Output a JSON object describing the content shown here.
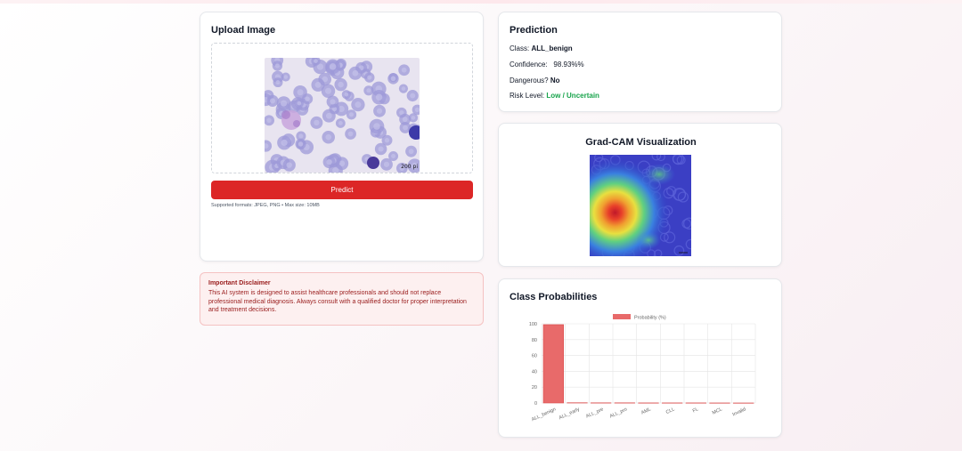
{
  "upload": {
    "title": "Upload Image",
    "scale_label": "200 pi",
    "predict_label": "Predict",
    "formats_text": "Supported formats: JPEG, PNG • Max size: 10MB"
  },
  "disclaimer": {
    "title": "Important Disclaimer",
    "text": "This AI system is designed to assist healthcare professionals and should not replace professional medical diagnosis. Always consult with a qualified doctor for proper interpretation and treatment decisions."
  },
  "prediction": {
    "title": "Prediction",
    "class_label": "Class:",
    "class_value": "ALL_benign",
    "confidence_label": "Confidence:",
    "confidence_value": "98.93%%",
    "dangerous_label": "Dangerous?",
    "dangerous_value": "No",
    "risk_label": "Risk Level:",
    "risk_value": "Low / Uncertain"
  },
  "gradcam": {
    "title": "Grad-CAM Visualization",
    "scale_label": "200"
  },
  "probabilities": {
    "title": "Class Probabilities"
  },
  "colors": {
    "accent": "#dc2626",
    "bar": "#e86a6a",
    "risk_low": "#16a34a",
    "disclaimer_text": "#991b1b"
  },
  "chart_data": {
    "type": "bar",
    "categories": [
      "ALL_benign",
      "ALL_early",
      "ALL_pre",
      "ALL_pro",
      "AML",
      "CLL",
      "FL",
      "MCL",
      "Invalid"
    ],
    "series": [
      {
        "name": "Probability (%)",
        "values": [
          98.93,
          0.3,
          0.2,
          0.2,
          0.1,
          0.1,
          0.1,
          0.05,
          0.02
        ]
      }
    ],
    "yticks": [
      "0",
      "20",
      "40",
      "60",
      "80",
      "100"
    ],
    "ylim": [
      0,
      100
    ],
    "grid": true,
    "legend": "top"
  }
}
